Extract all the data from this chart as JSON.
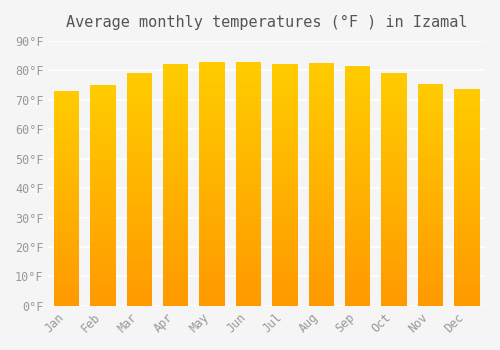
{
  "months": [
    "Jan",
    "Feb",
    "Mar",
    "Apr",
    "May",
    "Jun",
    "Jul",
    "Aug",
    "Sep",
    "Oct",
    "Nov",
    "Dec"
  ],
  "values": [
    73,
    75,
    79,
    82,
    83,
    83,
    82,
    82.5,
    81.5,
    79,
    75.5,
    73.5
  ],
  "bar_color_main": "#FFA500",
  "bar_color_gradient_top": "#FFD700",
  "title": "Average monthly temperatures (°F ) in Izamal",
  "ylim": [
    0,
    90
  ],
  "yticks": [
    0,
    10,
    20,
    30,
    40,
    50,
    60,
    70,
    80,
    90
  ],
  "ytick_labels": [
    "0°F",
    "10°F",
    "20°F",
    "30°F",
    "40°F",
    "50°F",
    "60°F",
    "70°F",
    "80°F",
    "90°F"
  ],
  "background_color": "#f5f5f5",
  "grid_color": "#ffffff",
  "title_fontsize": 11,
  "tick_fontsize": 8.5
}
